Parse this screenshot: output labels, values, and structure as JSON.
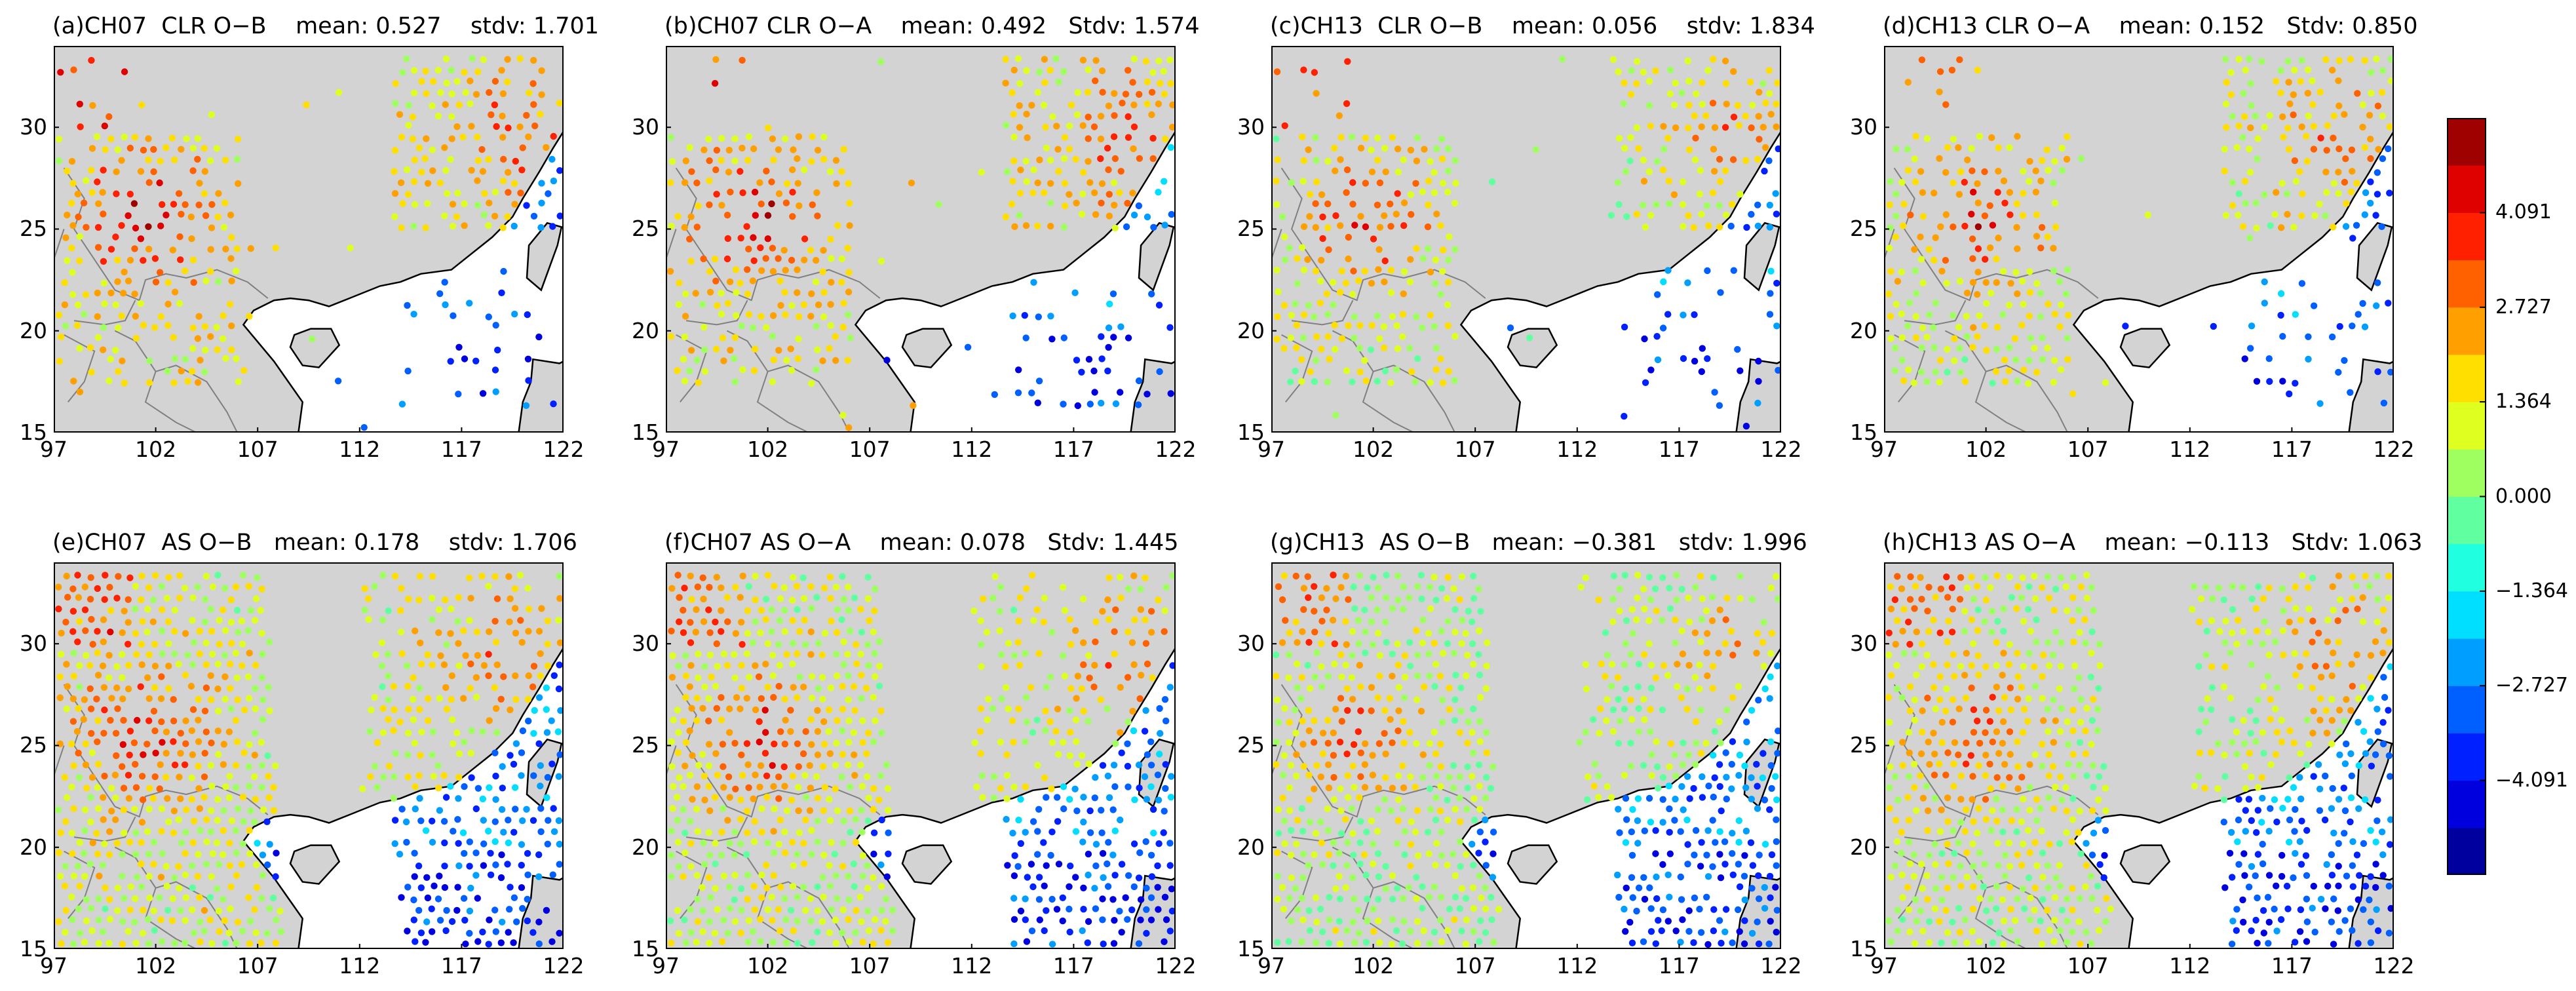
{
  "panels": [
    {
      "title": "(a)CH07  CLR O−B    mean: 0.527    stdv: 1.701",
      "coverage": "clear",
      "bias": 0.527
    },
    {
      "title": "(b)CH07 CLR O−A    mean: 0.492   Stdv: 1.574",
      "coverage": "clear",
      "bias": 0.492
    },
    {
      "title": "(c)CH13  CLR O−B    mean: 0.056    stdv: 1.834",
      "coverage": "clear",
      "bias": 0.056
    },
    {
      "title": "(d)CH13 CLR O−A    mean: 0.152   Stdv: 0.850",
      "coverage": "clear",
      "bias": 0.152
    },
    {
      "title": "(e)CH07  AS O−B   mean: 0.178    stdv: 1.706",
      "coverage": "allsky",
      "bias": 0.178
    },
    {
      "title": "(f)CH07 AS O−A    mean: 0.078   Stdv: 1.445",
      "coverage": "allsky",
      "bias": 0.078
    },
    {
      "title": "(g)CH13  AS O−B   mean: −0.381   stdv: 1.996",
      "coverage": "allsky",
      "bias": -0.381
    },
    {
      "title": "(h)CH13 AS O−A    mean: −0.113   Stdv: 1.063",
      "coverage": "allsky",
      "bias": -0.113
    }
  ],
  "axes": {
    "x_ticks": [
      "97",
      "102",
      "107",
      "112",
      "117",
      "122"
    ],
    "y_ticks": [
      "15",
      "20",
      "25",
      "30"
    ],
    "lon_range": [
      97,
      122
    ],
    "lat_range": [
      15,
      34
    ]
  },
  "colorbar": {
    "ticks": [
      "4.091",
      "2.727",
      "1.364",
      "0.000",
      "−1.364",
      "−2.727",
      "−4.091"
    ],
    "range": [
      -5.455,
      5.455
    ],
    "levels": 16,
    "colormap": "jet"
  },
  "colors": {
    "land": "#d3d3d3",
    "sea": "#ffffff",
    "coast": "#000000",
    "border": "#808080"
  }
}
